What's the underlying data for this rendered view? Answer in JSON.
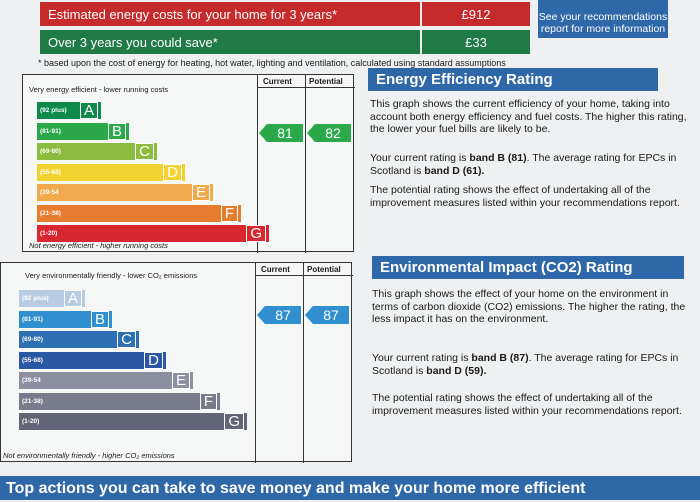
{
  "costs": {
    "row1_label": "Estimated energy costs for your home for 3 years*",
    "row1_value": "£912",
    "row2_label": "Over 3 years you could save*",
    "row2_value": "£33",
    "recs_box": "See your recommendations report for more information",
    "footnote": "* based upon the cost of energy for heating, hot water, lighting and ventilation, calculated using standard assumptions"
  },
  "energy_chart": {
    "col_current": "Current",
    "col_potential": "Potential",
    "top_caption": "Very energy efficient - lower running costs",
    "bottom_caption": "Not energy efficient - higher running costs",
    "bands": [
      {
        "range": "(92 plus)",
        "letter": "A",
        "color": "#0f8a4b"
      },
      {
        "range": "(81-91)",
        "letter": "B",
        "color": "#2aa84a"
      },
      {
        "range": "(69-80)",
        "letter": "C",
        "color": "#8cbc3f"
      },
      {
        "range": "(55-68)",
        "letter": "D",
        "color": "#f2d22e"
      },
      {
        "range": "(39-54",
        "letter": "E",
        "color": "#f1a94b"
      },
      {
        "range": "(21-38)",
        "letter": "F",
        "color": "#e77c2f"
      },
      {
        "range": "(1-20)",
        "letter": "G",
        "color": "#d8272e"
      }
    ],
    "current": "81",
    "potential": "82",
    "arrow_color": "#2aa84a"
  },
  "env_chart": {
    "col_current": "Current",
    "col_potential": "Potential",
    "top_caption": "Very environmentally friendly - lower CO₂ emissions",
    "bottom_caption": "Not environmentally friendly - higher CO₂ emissions",
    "bands": [
      {
        "range": "(92 plus)",
        "letter": "A",
        "color": "#b7cbe3"
      },
      {
        "range": "(81-91)",
        "letter": "B",
        "color": "#2f8fcf"
      },
      {
        "range": "(69-80)",
        "letter": "C",
        "color": "#2c6fb3"
      },
      {
        "range": "(55-68)",
        "letter": "D",
        "color": "#2b58a2"
      },
      {
        "range": "(39-54",
        "letter": "E",
        "color": "#8b8fa0"
      },
      {
        "range": "(21-38)",
        "letter": "F",
        "color": "#777b8c"
      },
      {
        "range": "(1-20)",
        "letter": "G",
        "color": "#626575"
      }
    ],
    "current": "87",
    "potential": "87",
    "arrow_color": "#2f8fcf"
  },
  "energy_text": {
    "title": "Energy Efficiency Rating",
    "p1": "This graph shows the current efficiency of your home, taking into account both energy efficiency and fuel costs. The higher this rating, the lower your fuel bills are likely to be.",
    "p2_prefix": "Your current rating is ",
    "p2_band": "band B (81)",
    "p2_mid": ". The average rating for EPCs in Scotland is ",
    "p2_avg": "band D (61).",
    "p3": "The potential rating shows the effect of undertaking all of the improvement measures listed within your recommendations report."
  },
  "env_text": {
    "title": "Environmental Impact (CO2) Rating",
    "p1": "This graph shows the effect of your home on the environment in terms of carbon dioxide (CO2) emissions. The higher the rating, the less impact it has on the environment.",
    "p2_prefix": "Your current rating is ",
    "p2_band": "band B (87)",
    "p2_mid": ". The average rating for EPCs in Scotland is ",
    "p2_avg": "band D (59).",
    "p3": "The potential rating shows the effect of undertaking all of the improvement measures listed within your recommendations report."
  },
  "bottom_banner": "Top actions you can take to save money and make your home more efficient"
}
